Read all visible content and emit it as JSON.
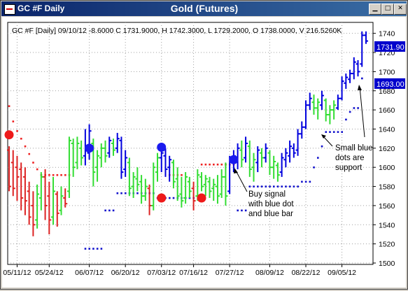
{
  "window": {
    "title": "GC #F Daily",
    "center_title": "Gold (Futures)",
    "minimize_glyph": "▁",
    "maximize_glyph": "□",
    "close_glyph": "✕"
  },
  "header_text": "GC #F [Daily] 09/10/12  -8.6000 C 1731.9000, H 1742.3000, L 1729.2000, O 1738.0000, V 216.5260K",
  "price_labels": {
    "current": "1731.90",
    "support": "1693.00"
  },
  "annotations": {
    "support_note": [
      "Small blue",
      "dots are",
      "support"
    ],
    "buy_note": [
      "Buy signal",
      "with blue dot",
      "and blue bar"
    ]
  },
  "colors": {
    "up": "#33dd33",
    "down": "#dd2222",
    "signal": "#0000dd",
    "stop": "#ee2222",
    "support": "#1111cc"
  },
  "chart_data": {
    "type": "ohlc",
    "ylim": [
      1500,
      1750
    ],
    "yticks": [
      1500,
      1520,
      1540,
      1560,
      1580,
      1600,
      1620,
      1640,
      1660,
      1680,
      1700,
      1720,
      1740
    ],
    "xticks": [
      {
        "label": "05/11/12",
        "i": 2
      },
      {
        "label": "05/24/12",
        "i": 10
      },
      {
        "label": "06/07/12",
        "i": 20
      },
      {
        "label": "06/20/12",
        "i": 29
      },
      {
        "label": "07/03/12",
        "i": 38
      },
      {
        "label": "07/16/12",
        "i": 46
      },
      {
        "label": "07/27/12",
        "i": 55
      },
      {
        "label": "08/09/12",
        "i": 65
      },
      {
        "label": "08/22/12",
        "i": 74
      },
      {
        "label": "09/05/12",
        "i": 83
      }
    ],
    "bars": [
      {
        "h": 1622,
        "l": 1575,
        "o": 1618,
        "c": 1580,
        "k": "r"
      },
      {
        "h": 1618,
        "l": 1570,
        "o": 1605,
        "c": 1578,
        "k": "r"
      },
      {
        "h": 1612,
        "l": 1565,
        "o": 1600,
        "c": 1590,
        "k": "r"
      },
      {
        "h": 1605,
        "l": 1555,
        "o": 1598,
        "c": 1568,
        "k": "r"
      },
      {
        "h": 1600,
        "l": 1550,
        "o": 1590,
        "c": 1565,
        "k": "r"
      },
      {
        "h": 1585,
        "l": 1540,
        "o": 1575,
        "c": 1548,
        "k": "r"
      },
      {
        "h": 1575,
        "l": 1528,
        "o": 1560,
        "c": 1540,
        "k": "r"
      },
      {
        "h": 1582,
        "l": 1536,
        "o": 1545,
        "c": 1572,
        "k": "g"
      },
      {
        "h": 1595,
        "l": 1555,
        "o": 1568,
        "c": 1590,
        "k": "g"
      },
      {
        "h": 1598,
        "l": 1545,
        "o": 1590,
        "c": 1560,
        "k": "r"
      },
      {
        "h": 1585,
        "l": 1530,
        "o": 1570,
        "c": 1545,
        "k": "r"
      },
      {
        "h": 1590,
        "l": 1540,
        "o": 1548,
        "c": 1575,
        "k": "g"
      },
      {
        "h": 1575,
        "l": 1538,
        "o": 1572,
        "c": 1552,
        "k": "r"
      },
      {
        "h": 1580,
        "l": 1550,
        "o": 1555,
        "c": 1570,
        "k": "g"
      },
      {
        "h": 1578,
        "l": 1558,
        "o": 1568,
        "c": 1562,
        "k": "r"
      },
      {
        "h": 1632,
        "l": 1568,
        "o": 1575,
        "c": 1628,
        "k": "g"
      },
      {
        "h": 1630,
        "l": 1590,
        "o": 1625,
        "c": 1600,
        "k": "g"
      },
      {
        "h": 1632,
        "l": 1598,
        "o": 1605,
        "c": 1625,
        "k": "g"
      },
      {
        "h": 1628,
        "l": 1602,
        "o": 1620,
        "c": 1610,
        "k": "g"
      },
      {
        "h": 1640,
        "l": 1602,
        "o": 1612,
        "c": 1618,
        "k": "b"
      },
      {
        "h": 1645,
        "l": 1608,
        "o": 1615,
        "c": 1638,
        "k": "b"
      },
      {
        "h": 1630,
        "l": 1580,
        "o": 1625,
        "c": 1595,
        "k": "g"
      },
      {
        "h": 1618,
        "l": 1585,
        "o": 1600,
        "c": 1612,
        "k": "g"
      },
      {
        "h": 1625,
        "l": 1600,
        "o": 1610,
        "c": 1620,
        "k": "g"
      },
      {
        "h": 1628,
        "l": 1605,
        "o": 1620,
        "c": 1612,
        "k": "g"
      },
      {
        "h": 1632,
        "l": 1610,
        "o": 1615,
        "c": 1628,
        "k": "b"
      },
      {
        "h": 1630,
        "l": 1612,
        "o": 1625,
        "c": 1618,
        "k": "g"
      },
      {
        "h": 1636,
        "l": 1615,
        "o": 1620,
        "c": 1630,
        "k": "b"
      },
      {
        "h": 1632,
        "l": 1588,
        "o": 1628,
        "c": 1595,
        "k": "b"
      },
      {
        "h": 1618,
        "l": 1590,
        "o": 1598,
        "c": 1610,
        "k": "b"
      },
      {
        "h": 1610,
        "l": 1570,
        "o": 1605,
        "c": 1578,
        "k": "g"
      },
      {
        "h": 1595,
        "l": 1568,
        "o": 1580,
        "c": 1590,
        "k": "g"
      },
      {
        "h": 1600,
        "l": 1575,
        "o": 1588,
        "c": 1582,
        "k": "g"
      },
      {
        "h": 1592,
        "l": 1562,
        "o": 1585,
        "c": 1570,
        "k": "g"
      },
      {
        "h": 1588,
        "l": 1565,
        "o": 1570,
        "c": 1580,
        "k": "g"
      },
      {
        "h": 1582,
        "l": 1550,
        "o": 1578,
        "c": 1560,
        "k": "r"
      },
      {
        "h": 1605,
        "l": 1555,
        "o": 1560,
        "c": 1600,
        "k": "g"
      },
      {
        "h": 1615,
        "l": 1585,
        "o": 1595,
        "c": 1610,
        "k": "g"
      },
      {
        "h": 1622,
        "l": 1595,
        "o": 1610,
        "c": 1615,
        "k": "b"
      },
      {
        "h": 1620,
        "l": 1590,
        "o": 1612,
        "c": 1598,
        "k": "b"
      },
      {
        "h": 1612,
        "l": 1585,
        "o": 1600,
        "c": 1608,
        "k": "b"
      },
      {
        "h": 1608,
        "l": 1578,
        "o": 1605,
        "c": 1585,
        "k": "g"
      },
      {
        "h": 1600,
        "l": 1565,
        "o": 1588,
        "c": 1570,
        "k": "g"
      },
      {
        "h": 1590,
        "l": 1558,
        "o": 1572,
        "c": 1565,
        "k": "g"
      },
      {
        "h": 1595,
        "l": 1562,
        "o": 1568,
        "c": 1590,
        "k": "g"
      },
      {
        "h": 1590,
        "l": 1568,
        "o": 1585,
        "c": 1575,
        "k": "g"
      },
      {
        "h": 1585,
        "l": 1555,
        "o": 1578,
        "c": 1565,
        "k": "r"
      },
      {
        "h": 1598,
        "l": 1565,
        "o": 1570,
        "c": 1592,
        "k": "g"
      },
      {
        "h": 1595,
        "l": 1575,
        "o": 1590,
        "c": 1580,
        "k": "g"
      },
      {
        "h": 1592,
        "l": 1570,
        "o": 1582,
        "c": 1588,
        "k": "g"
      },
      {
        "h": 1590,
        "l": 1568,
        "o": 1585,
        "c": 1575,
        "k": "g"
      },
      {
        "h": 1588,
        "l": 1565,
        "o": 1578,
        "c": 1582,
        "k": "g"
      },
      {
        "h": 1592,
        "l": 1562,
        "o": 1580,
        "c": 1570,
        "k": "g"
      },
      {
        "h": 1598,
        "l": 1568,
        "o": 1572,
        "c": 1590,
        "k": "g"
      },
      {
        "h": 1605,
        "l": 1560,
        "o": 1590,
        "c": 1570,
        "k": "g"
      },
      {
        "h": 1612,
        "l": 1572,
        "o": 1575,
        "c": 1608,
        "k": "b"
      },
      {
        "h": 1618,
        "l": 1595,
        "o": 1605,
        "c": 1612,
        "k": "b"
      },
      {
        "h": 1625,
        "l": 1598,
        "o": 1610,
        "c": 1620,
        "k": "b"
      },
      {
        "h": 1628,
        "l": 1600,
        "o": 1618,
        "c": 1608,
        "k": "g"
      },
      {
        "h": 1632,
        "l": 1605,
        "o": 1610,
        "c": 1625,
        "k": "b"
      },
      {
        "h": 1628,
        "l": 1590,
        "o": 1622,
        "c": 1598,
        "k": "g"
      },
      {
        "h": 1615,
        "l": 1585,
        "o": 1600,
        "c": 1608,
        "k": "g"
      },
      {
        "h": 1622,
        "l": 1595,
        "o": 1605,
        "c": 1618,
        "k": "b"
      },
      {
        "h": 1620,
        "l": 1600,
        "o": 1615,
        "c": 1610,
        "k": "g"
      },
      {
        "h": 1625,
        "l": 1605,
        "o": 1610,
        "c": 1620,
        "k": "b"
      },
      {
        "h": 1618,
        "l": 1592,
        "o": 1615,
        "c": 1600,
        "k": "g"
      },
      {
        "h": 1612,
        "l": 1588,
        "o": 1600,
        "c": 1606,
        "k": "g"
      },
      {
        "h": 1605,
        "l": 1585,
        "o": 1602,
        "c": 1592,
        "k": "g"
      },
      {
        "h": 1615,
        "l": 1590,
        "o": 1595,
        "c": 1610,
        "k": "b"
      },
      {
        "h": 1620,
        "l": 1600,
        "o": 1608,
        "c": 1615,
        "k": "b"
      },
      {
        "h": 1628,
        "l": 1605,
        "o": 1612,
        "c": 1622,
        "k": "b"
      },
      {
        "h": 1625,
        "l": 1610,
        "o": 1620,
        "c": 1615,
        "k": "b"
      },
      {
        "h": 1640,
        "l": 1612,
        "o": 1618,
        "c": 1635,
        "k": "b"
      },
      {
        "h": 1648,
        "l": 1630,
        "o": 1635,
        "c": 1642,
        "k": "b"
      },
      {
        "h": 1670,
        "l": 1640,
        "o": 1642,
        "c": 1665,
        "k": "b"
      },
      {
        "h": 1678,
        "l": 1660,
        "o": 1665,
        "c": 1672,
        "k": "b"
      },
      {
        "h": 1676,
        "l": 1655,
        "o": 1668,
        "c": 1662,
        "k": "g"
      },
      {
        "h": 1672,
        "l": 1650,
        "o": 1662,
        "c": 1668,
        "k": "g"
      },
      {
        "h": 1680,
        "l": 1660,
        "o": 1665,
        "c": 1675,
        "k": "b"
      },
      {
        "h": 1672,
        "l": 1648,
        "o": 1670,
        "c": 1655,
        "k": "g"
      },
      {
        "h": 1665,
        "l": 1645,
        "o": 1655,
        "c": 1660,
        "k": "g"
      },
      {
        "h": 1670,
        "l": 1650,
        "o": 1660,
        "c": 1665,
        "k": "g"
      },
      {
        "h": 1676,
        "l": 1660,
        "o": 1662,
        "c": 1672,
        "k": "b"
      },
      {
        "h": 1695,
        "l": 1670,
        "o": 1672,
        "c": 1690,
        "k": "b"
      },
      {
        "h": 1698,
        "l": 1682,
        "o": 1688,
        "c": 1694,
        "k": "b"
      },
      {
        "h": 1702,
        "l": 1688,
        "o": 1692,
        "c": 1698,
        "k": "b"
      },
      {
        "h": 1715,
        "l": 1692,
        "o": 1698,
        "c": 1710,
        "k": "b"
      },
      {
        "h": 1712,
        "l": 1695,
        "o": 1708,
        "c": 1700,
        "k": "b"
      },
      {
        "h": 1742,
        "l": 1705,
        "o": 1708,
        "c": 1738,
        "k": "b"
      },
      {
        "h": 1742,
        "l": 1729,
        "o": 1738,
        "c": 1732,
        "k": "b"
      }
    ],
    "red_dots": [
      [
        0,
        1664
      ],
      [
        1,
        1648
      ],
      [
        2,
        1638
      ],
      [
        3,
        1630
      ],
      [
        4,
        1622
      ],
      [
        5,
        1614
      ],
      [
        6,
        1605
      ],
      [
        7,
        1598
      ],
      [
        8,
        1592
      ],
      [
        9,
        1592
      ],
      [
        10,
        1592
      ],
      [
        11,
        1592
      ],
      [
        12,
        1592
      ],
      [
        13,
        1592
      ],
      [
        14,
        1592
      ],
      [
        15,
        1592
      ],
      [
        40,
        1592
      ],
      [
        41,
        1592
      ],
      [
        42,
        1592
      ],
      [
        43,
        1592
      ],
      [
        48,
        1603
      ],
      [
        49,
        1603
      ],
      [
        50,
        1603
      ],
      [
        51,
        1603
      ],
      [
        52,
        1603
      ],
      [
        53,
        1603
      ],
      [
        54,
        1603
      ],
      [
        55,
        1603
      ],
      [
        56,
        1603
      ]
    ],
    "blue_dots": [
      [
        19,
        1515
      ],
      [
        20,
        1515
      ],
      [
        21,
        1515
      ],
      [
        22,
        1515
      ],
      [
        23,
        1515
      ],
      [
        24,
        1555
      ],
      [
        25,
        1555
      ],
      [
        26,
        1555
      ],
      [
        27,
        1573
      ],
      [
        28,
        1573
      ],
      [
        29,
        1573
      ],
      [
        30,
        1573
      ],
      [
        31,
        1573
      ],
      [
        32,
        1573
      ],
      [
        33,
        1573
      ],
      [
        34,
        1573
      ],
      [
        35,
        1573
      ],
      [
        36,
        1573
      ],
      [
        37,
        1568
      ],
      [
        38,
        1568
      ],
      [
        39,
        1568
      ],
      [
        40,
        1568
      ],
      [
        41,
        1568
      ],
      [
        42,
        1568
      ],
      [
        43,
        1568
      ],
      [
        44,
        1568
      ],
      [
        45,
        1568
      ],
      [
        46,
        1568
      ],
      [
        57,
        1555
      ],
      [
        58,
        1555
      ],
      [
        59,
        1555
      ],
      [
        60,
        1580
      ],
      [
        61,
        1580
      ],
      [
        62,
        1580
      ],
      [
        63,
        1580
      ],
      [
        64,
        1580
      ],
      [
        65,
        1580
      ],
      [
        66,
        1580
      ],
      [
        67,
        1580
      ],
      [
        68,
        1580
      ],
      [
        69,
        1580
      ],
      [
        70,
        1580
      ],
      [
        71,
        1580
      ],
      [
        72,
        1580
      ],
      [
        73,
        1585
      ],
      [
        74,
        1585
      ],
      [
        75,
        1585
      ],
      [
        76,
        1600
      ],
      [
        77,
        1610
      ],
      [
        78,
        1622
      ],
      [
        79,
        1637
      ],
      [
        80,
        1637
      ],
      [
        81,
        1637
      ],
      [
        82,
        1637
      ],
      [
        83,
        1637
      ],
      [
        84,
        1650
      ],
      [
        85,
        1658
      ],
      [
        86,
        1662
      ],
      [
        87,
        1662
      ],
      [
        88,
        1693
      ]
    ],
    "big_blue_signals": [
      [
        20,
        1620
      ],
      [
        38,
        1621
      ],
      [
        56,
        1608
      ]
    ],
    "big_red_signals": [
      [
        0,
        1634
      ],
      [
        38,
        1568
      ],
      [
        48,
        1568
      ]
    ]
  }
}
